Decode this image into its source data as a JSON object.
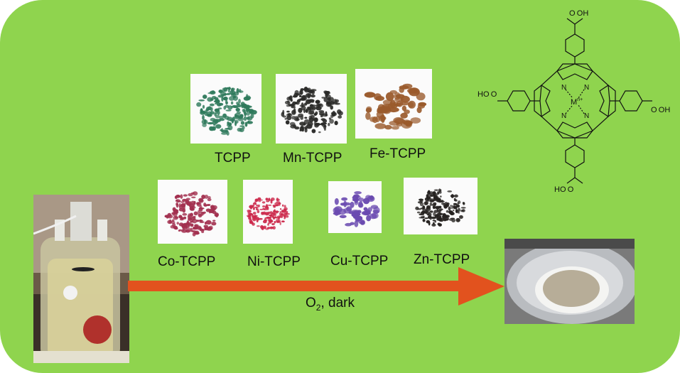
{
  "samples": {
    "tcpp": {
      "label": "TCPP",
      "color": "#2f7a5c"
    },
    "mn_tcpp": {
      "label": "Mn-TCPP",
      "color": "#2a2a28"
    },
    "fe_tcpp": {
      "label": "Fe-TCPP",
      "color": "#9a5a2c"
    },
    "co_tcpp": {
      "label": "Co-TCPP",
      "color": "#a2304f"
    },
    "ni_tcpp": {
      "label": "Ni-TCPP",
      "color": "#cc2a4c"
    },
    "cu_tcpp": {
      "label": "Cu-TCPP",
      "color": "#6a4ab0"
    },
    "zn_tcpp": {
      "label": "Zn-TCPP",
      "color": "#252220"
    }
  },
  "arrow": {
    "label_main": "O",
    "label_sub": "2",
    "label_rest": ", dark",
    "color": "#e2521e"
  },
  "structure": {
    "cooh_top": "O OH",
    "cooh_left": "HO O",
    "cooh_right": "O OH",
    "cooh_bottom": "HO O",
    "n_atom": "N",
    "metal": "M",
    "metal_sup": "n+"
  },
  "colors": {
    "background": "#8fd44e",
    "arrow": "#e2521e"
  },
  "icons": [
    "reactor-photo",
    "product-dish-photo",
    "porphyrin-structure"
  ]
}
